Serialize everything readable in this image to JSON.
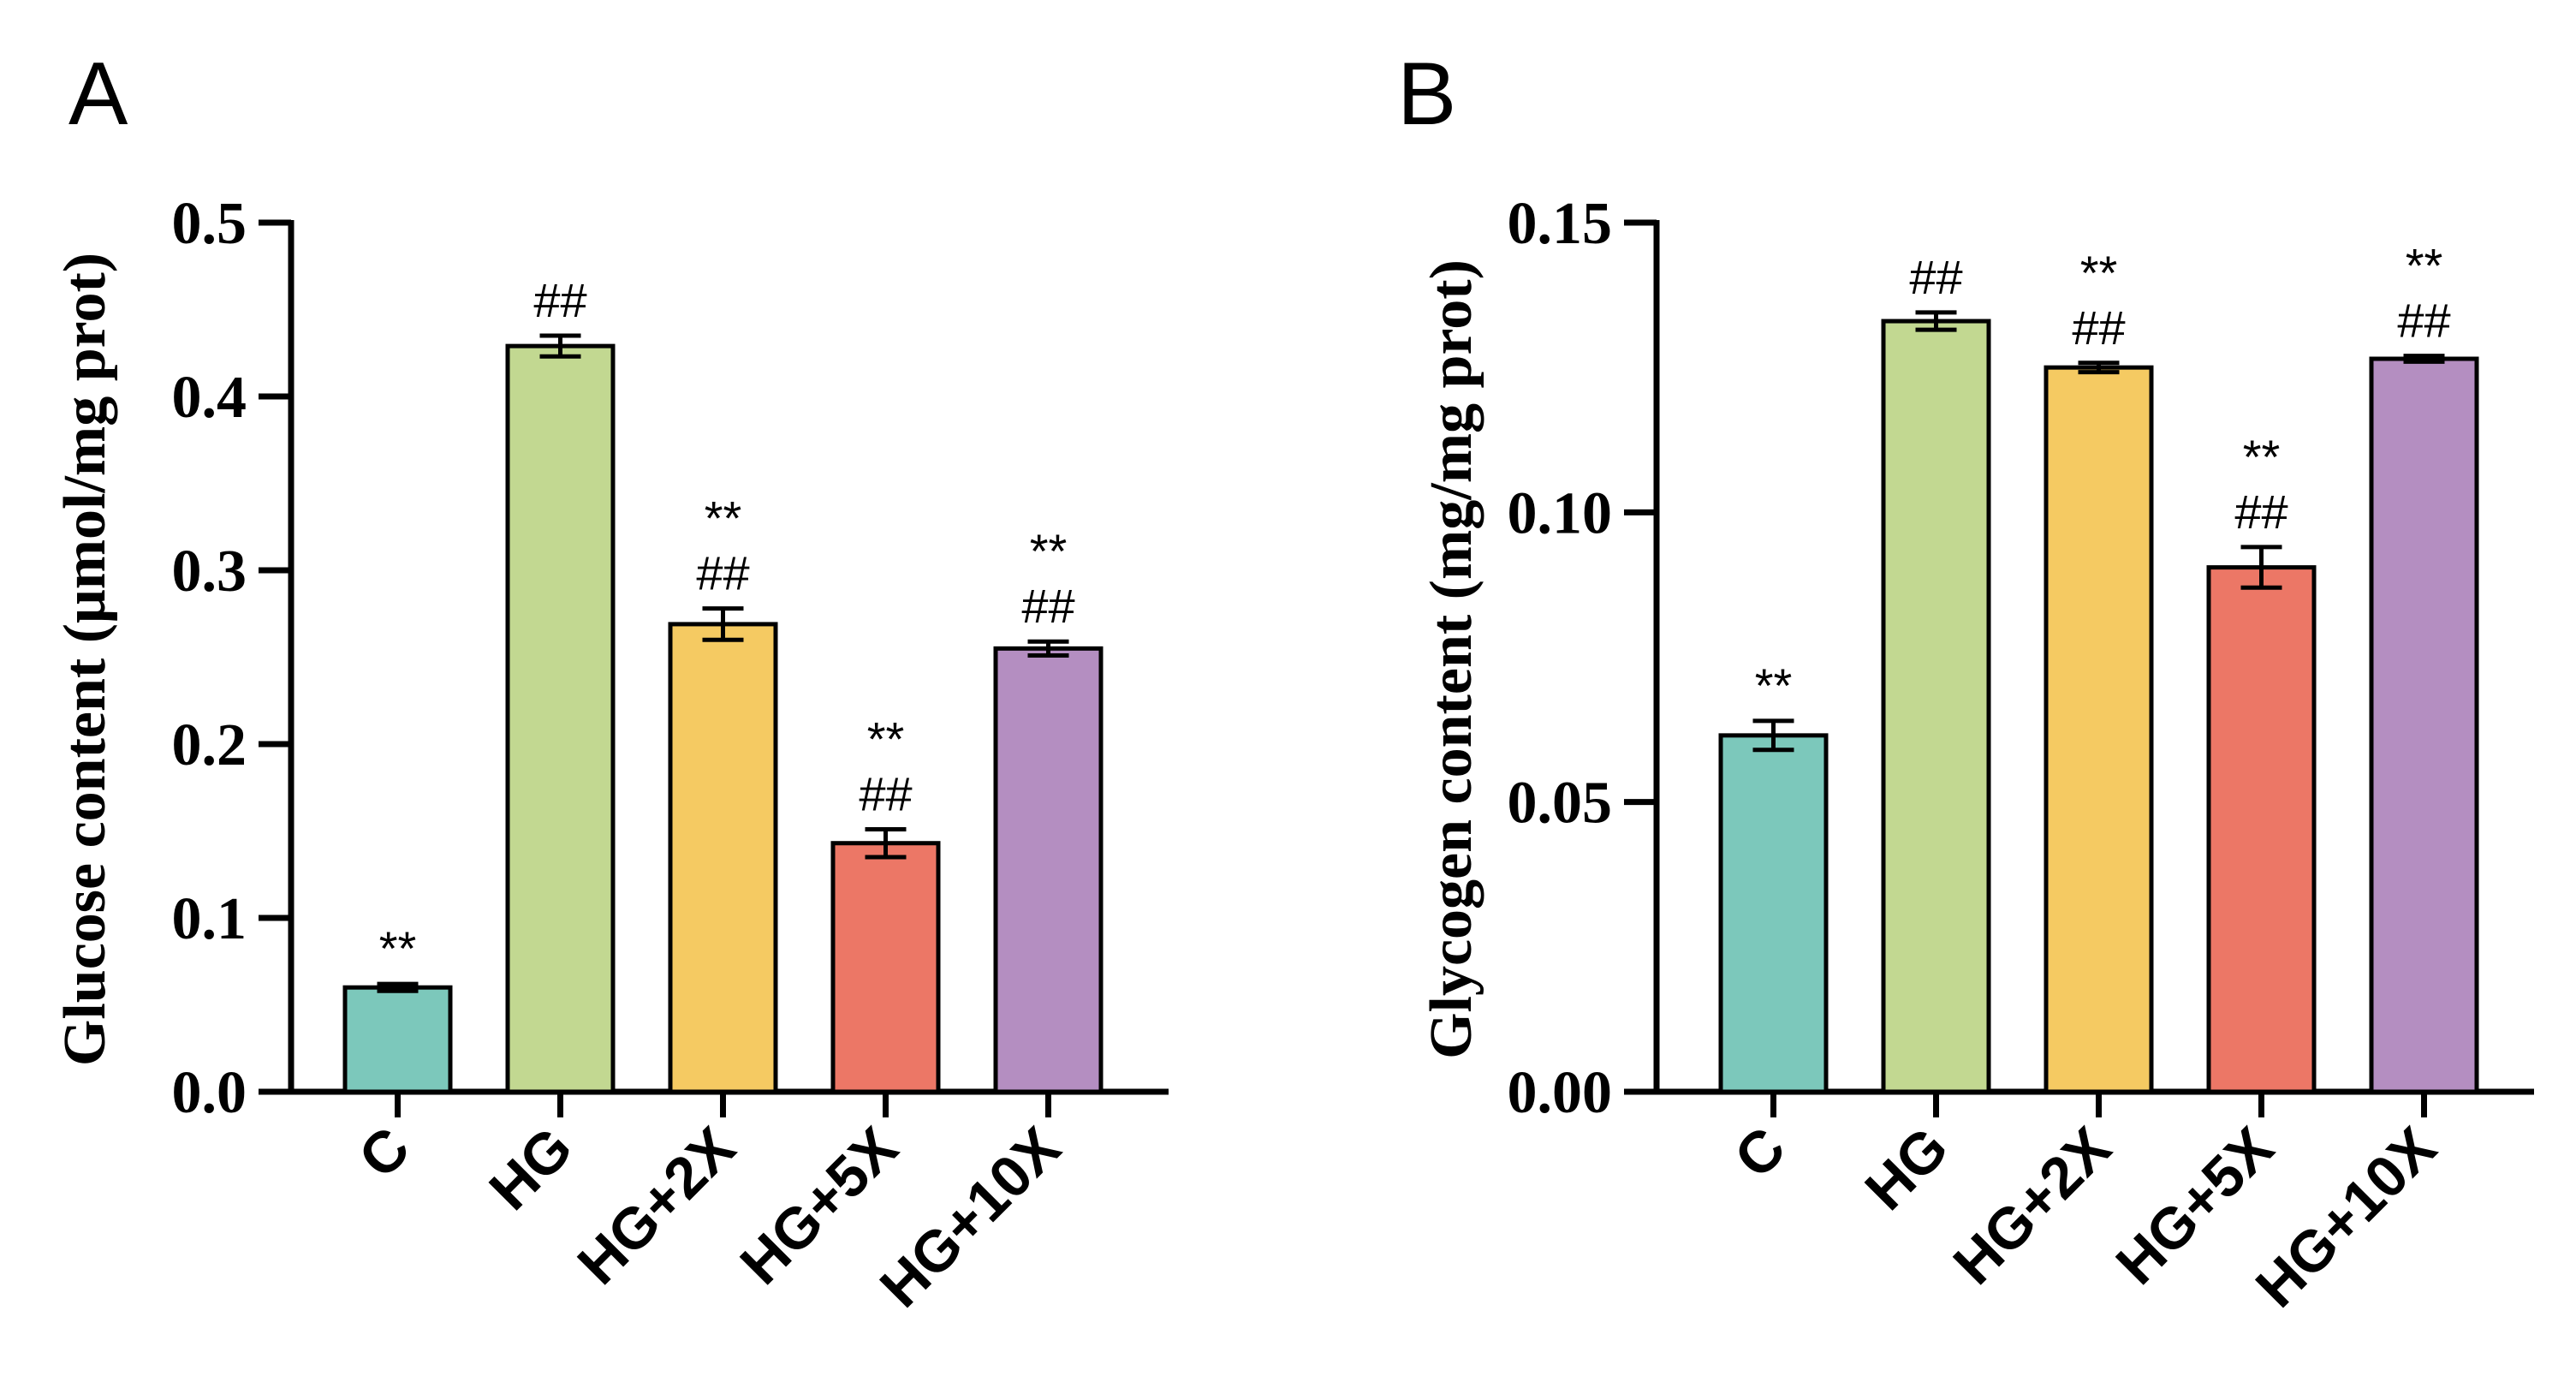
{
  "chart_data": [
    {
      "type": "bar",
      "panel": "A",
      "title": "",
      "xlabel": "",
      "ylabel": "Glucose content (μmol/mg prot)",
      "ylim": [
        0,
        0.5
      ],
      "yticks": [
        "0.0",
        "0.1",
        "0.2",
        "0.3",
        "0.4",
        "0.5"
      ],
      "ytick_values": [
        0,
        0.1,
        0.2,
        0.3,
        0.4,
        0.5
      ],
      "categories": [
        "C",
        "HG",
        "HG+2X",
        "HG+5X",
        "HG+10X"
      ],
      "values": [
        0.06,
        0.429,
        0.269,
        0.143,
        0.255
      ],
      "errors": [
        0.002,
        0.006,
        0.009,
        0.008,
        0.004
      ],
      "colors": [
        "#7CC8BB",
        "#C2D891",
        "#F5CA62",
        "#EC7766",
        "#B48EC1"
      ],
      "annotations": [
        [
          "**"
        ],
        [
          "##"
        ],
        [
          "**",
          "##"
        ],
        [
          "**",
          "##"
        ],
        [
          "**",
          "##"
        ]
      ]
    },
    {
      "type": "bar",
      "panel": "B",
      "title": "",
      "xlabel": "",
      "ylabel": "Glycogen content (mg/mg prot)",
      "ylim": [
        0,
        0.15
      ],
      "yticks": [
        "0.00",
        "0.05",
        "0.10",
        "0.15"
      ],
      "ytick_values": [
        0,
        0.05,
        0.1,
        0.15
      ],
      "categories": [
        "C",
        "HG",
        "HG+2X",
        "HG+5X",
        "HG+10X"
      ],
      "values": [
        0.0615,
        0.133,
        0.125,
        0.0905,
        0.1265
      ],
      "errors": [
        0.0025,
        0.0015,
        0.0008,
        0.0035,
        0.0005
      ],
      "colors": [
        "#7CC8BB",
        "#C2D891",
        "#F5CA62",
        "#EC7766",
        "#B48EC1"
      ],
      "annotations": [
        [
          "**"
        ],
        [
          "##"
        ],
        [
          "**",
          "##"
        ],
        [
          "**",
          "##"
        ],
        [
          "**",
          "##"
        ]
      ]
    }
  ]
}
